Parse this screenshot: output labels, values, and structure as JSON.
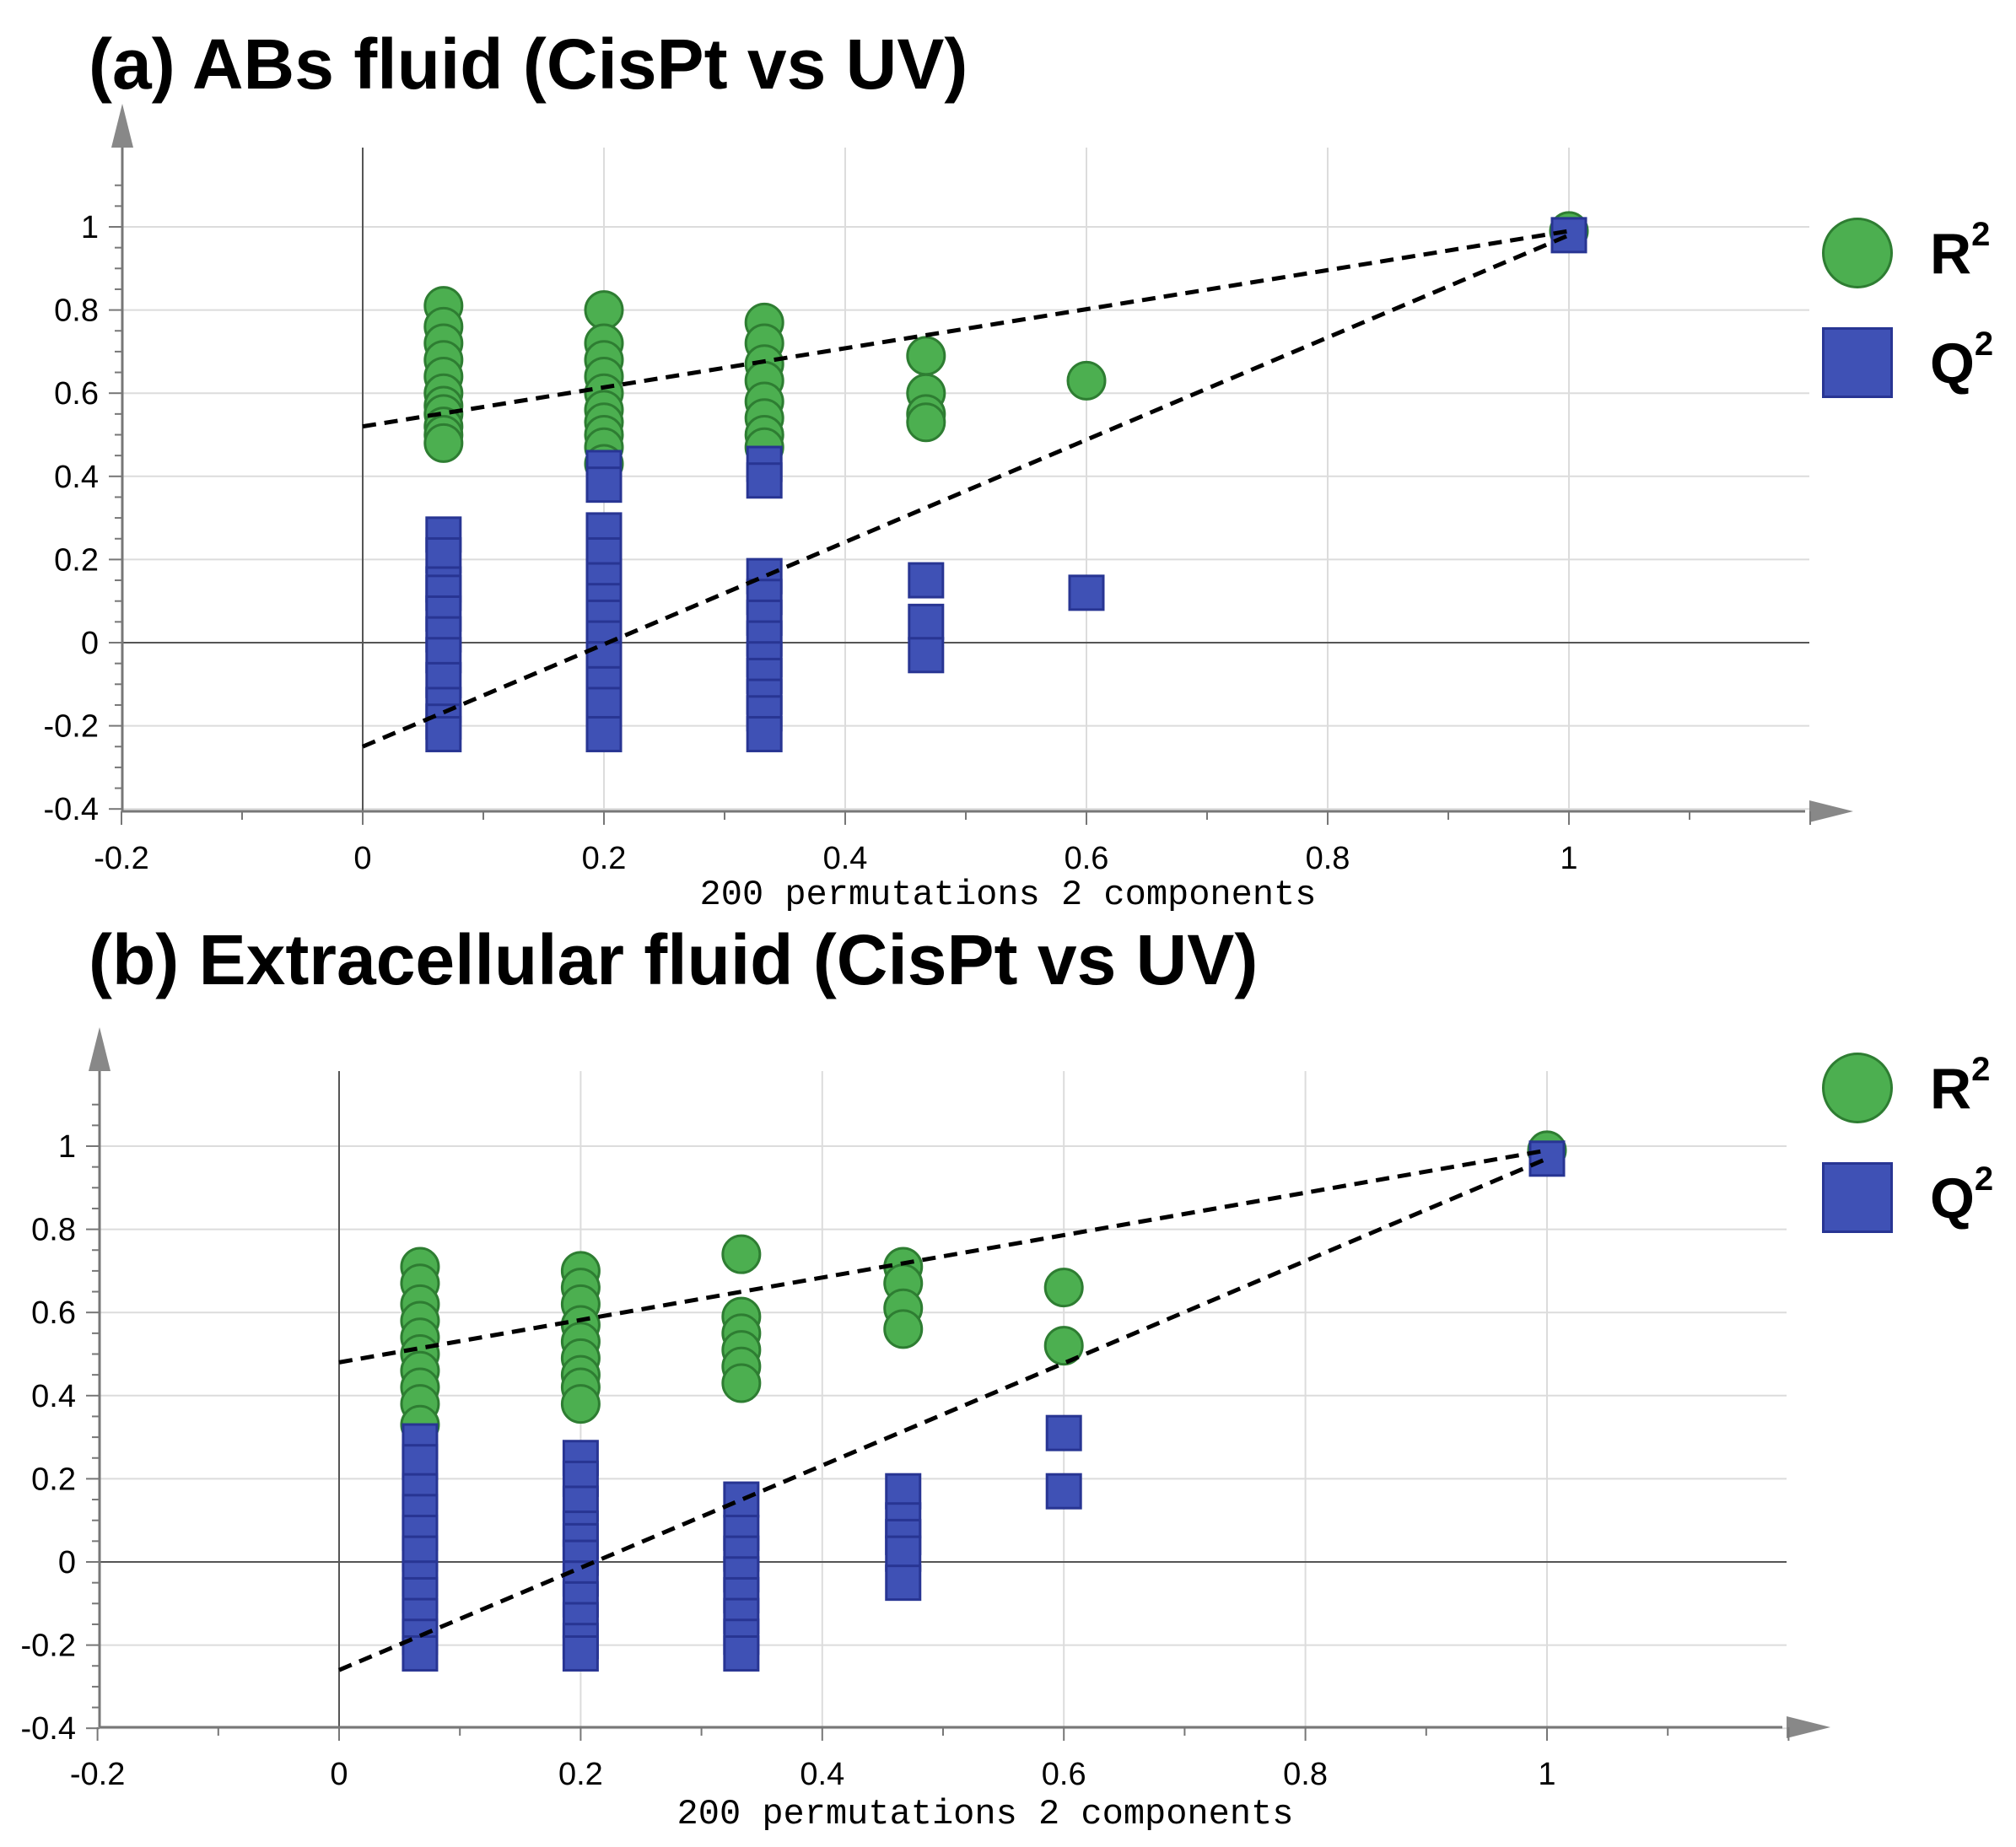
{
  "chart_data": [
    {
      "type": "scatter",
      "title": "(a) ABs fluid (CisPt vs UV)",
      "xlabel": "200 permutations 2 components",
      "ylabel": "",
      "xlim": [
        -0.2,
        1.2
      ],
      "ylim": [
        -0.4,
        1.2
      ],
      "xticks": [
        -0.2,
        0,
        0.2,
        0.4,
        0.6,
        0.8,
        1
      ],
      "yticks": [
        -0.4,
        -0.2,
        0,
        0.2,
        0.4,
        0.6,
        0.8,
        1
      ],
      "xtick_labels": [
        "-0.2",
        "0",
        "0.2",
        "0.4",
        "0.6",
        "0.8",
        "1"
      ],
      "ytick_labels": [
        "-0.4",
        "-0.2",
        "0",
        "0.2",
        "0.4",
        "0.6",
        "0.8",
        "1"
      ],
      "legend": [
        {
          "name": "R",
          "sup": "2",
          "marker": "circle",
          "color": "#4caf50"
        },
        {
          "name": "Q",
          "sup": "2",
          "marker": "square",
          "color": "#3f51b5"
        }
      ],
      "series": [
        {
          "name": "R2",
          "marker": "circle",
          "color": "#4caf50",
          "points": [
            [
              0.067,
              0.81
            ],
            [
              0.067,
              0.76
            ],
            [
              0.067,
              0.72
            ],
            [
              0.067,
              0.68
            ],
            [
              0.067,
              0.64
            ],
            [
              0.067,
              0.6
            ],
            [
              0.067,
              0.57
            ],
            [
              0.067,
              0.55
            ],
            [
              0.067,
              0.52
            ],
            [
              0.067,
              0.5
            ],
            [
              0.067,
              0.48
            ],
            [
              0.2,
              0.8
            ],
            [
              0.2,
              0.72
            ],
            [
              0.2,
              0.68
            ],
            [
              0.2,
              0.64
            ],
            [
              0.2,
              0.6
            ],
            [
              0.2,
              0.56
            ],
            [
              0.2,
              0.53
            ],
            [
              0.2,
              0.5
            ],
            [
              0.2,
              0.47
            ],
            [
              0.2,
              0.43
            ],
            [
              0.333,
              0.77
            ],
            [
              0.333,
              0.72
            ],
            [
              0.333,
              0.67
            ],
            [
              0.333,
              0.63
            ],
            [
              0.333,
              0.58
            ],
            [
              0.333,
              0.54
            ],
            [
              0.333,
              0.5
            ],
            [
              0.333,
              0.47
            ],
            [
              0.467,
              0.69
            ],
            [
              0.467,
              0.6
            ],
            [
              0.467,
              0.55
            ],
            [
              0.467,
              0.53
            ],
            [
              0.6,
              0.63
            ],
            [
              1.0,
              0.99
            ]
          ]
        },
        {
          "name": "Q2",
          "marker": "square",
          "color": "#3f51b5",
          "points": [
            [
              0.067,
              0.26
            ],
            [
              0.067,
              0.21
            ],
            [
              0.067,
              0.14
            ],
            [
              0.067,
              0.12
            ],
            [
              0.067,
              0.07
            ],
            [
              0.067,
              0.02
            ],
            [
              0.067,
              -0.03
            ],
            [
              0.067,
              -0.09
            ],
            [
              0.067,
              -0.15
            ],
            [
              0.067,
              -0.19
            ],
            [
              0.067,
              -0.22
            ],
            [
              0.2,
              0.42
            ],
            [
              0.2,
              0.38
            ],
            [
              0.2,
              0.27
            ],
            [
              0.2,
              0.21
            ],
            [
              0.2,
              0.15
            ],
            [
              0.2,
              0.1
            ],
            [
              0.2,
              0.06
            ],
            [
              0.2,
              0.01
            ],
            [
              0.2,
              -0.04
            ],
            [
              0.2,
              -0.1
            ],
            [
              0.2,
              -0.15
            ],
            [
              0.2,
              -0.22
            ],
            [
              0.333,
              0.43
            ],
            [
              0.333,
              0.39
            ],
            [
              0.333,
              0.16
            ],
            [
              0.333,
              0.11
            ],
            [
              0.333,
              0.06
            ],
            [
              0.333,
              0.01
            ],
            [
              0.333,
              -0.04
            ],
            [
              0.333,
              -0.08
            ],
            [
              0.333,
              -0.13
            ],
            [
              0.333,
              -0.17
            ],
            [
              0.333,
              -0.22
            ],
            [
              0.467,
              0.15
            ],
            [
              0.467,
              0.05
            ],
            [
              0.467,
              -0.03
            ],
            [
              0.6,
              0.12
            ],
            [
              1.0,
              0.98
            ]
          ]
        }
      ],
      "regression_lines": [
        {
          "name": "R2 intercept",
          "x": [
            0,
            1.0
          ],
          "y": [
            0.52,
            0.99
          ]
        },
        {
          "name": "Q2 intercept",
          "x": [
            0,
            1.0
          ],
          "y": [
            -0.25,
            0.98
          ]
        }
      ]
    },
    {
      "type": "scatter",
      "title": "(b) Extracellular fluid (CisPt vs UV)",
      "xlabel": "200 permutations 2 components",
      "ylabel": "",
      "xlim": [
        -0.2,
        1.2
      ],
      "ylim": [
        -0.4,
        1.2
      ],
      "xticks": [
        -0.2,
        0,
        0.2,
        0.4,
        0.6,
        0.8,
        1
      ],
      "yticks": [
        -0.4,
        -0.2,
        0,
        0.2,
        0.4,
        0.6,
        0.8,
        1
      ],
      "xtick_labels": [
        "-0.2",
        "0",
        "0.2",
        "0.4",
        "0.6",
        "0.8",
        "1"
      ],
      "ytick_labels": [
        "-0.4",
        "-0.2",
        "0",
        "0.2",
        "0.4",
        "0.6",
        "0.8",
        "1"
      ],
      "legend": [
        {
          "name": "R",
          "sup": "2",
          "marker": "circle",
          "color": "#4caf50"
        },
        {
          "name": "Q",
          "sup": "2",
          "marker": "square",
          "color": "#3f51b5"
        }
      ],
      "series": [
        {
          "name": "R2",
          "marker": "circle",
          "color": "#4caf50",
          "points": [
            [
              0.067,
              0.71
            ],
            [
              0.067,
              0.67
            ],
            [
              0.067,
              0.62
            ],
            [
              0.067,
              0.58
            ],
            [
              0.067,
              0.54
            ],
            [
              0.067,
              0.5
            ],
            [
              0.067,
              0.46
            ],
            [
              0.067,
              0.42
            ],
            [
              0.067,
              0.38
            ],
            [
              0.067,
              0.33
            ],
            [
              0.2,
              0.7
            ],
            [
              0.2,
              0.66
            ],
            [
              0.2,
              0.62
            ],
            [
              0.2,
              0.57
            ],
            [
              0.2,
              0.53
            ],
            [
              0.2,
              0.49
            ],
            [
              0.2,
              0.45
            ],
            [
              0.2,
              0.42
            ],
            [
              0.2,
              0.38
            ],
            [
              0.333,
              0.74
            ],
            [
              0.333,
              0.59
            ],
            [
              0.333,
              0.55
            ],
            [
              0.333,
              0.51
            ],
            [
              0.333,
              0.47
            ],
            [
              0.333,
              0.43
            ],
            [
              0.467,
              0.71
            ],
            [
              0.467,
              0.67
            ],
            [
              0.467,
              0.61
            ],
            [
              0.467,
              0.56
            ],
            [
              0.6,
              0.66
            ],
            [
              0.6,
              0.52
            ],
            [
              1.0,
              0.99
            ]
          ]
        },
        {
          "name": "Q2",
          "marker": "square",
          "color": "#3f51b5",
          "points": [
            [
              0.067,
              0.29
            ],
            [
              0.067,
              0.24
            ],
            [
              0.067,
              0.17
            ],
            [
              0.067,
              0.12
            ],
            [
              0.067,
              0.07
            ],
            [
              0.067,
              0.02
            ],
            [
              0.067,
              -0.04
            ],
            [
              0.067,
              -0.08
            ],
            [
              0.067,
              -0.13
            ],
            [
              0.067,
              -0.18
            ],
            [
              0.067,
              -0.22
            ],
            [
              0.2,
              0.25
            ],
            [
              0.2,
              0.2
            ],
            [
              0.2,
              0.14
            ],
            [
              0.2,
              0.08
            ],
            [
              0.2,
              0.05
            ],
            [
              0.2,
              0.01
            ],
            [
              0.2,
              -0.04
            ],
            [
              0.2,
              -0.09
            ],
            [
              0.2,
              -0.14
            ],
            [
              0.2,
              -0.19
            ],
            [
              0.2,
              -0.22
            ],
            [
              0.333,
              0.15
            ],
            [
              0.333,
              0.07
            ],
            [
              0.333,
              0.02
            ],
            [
              0.333,
              -0.03
            ],
            [
              0.333,
              -0.08
            ],
            [
              0.333,
              -0.13
            ],
            [
              0.333,
              -0.18
            ],
            [
              0.333,
              -0.22
            ],
            [
              0.467,
              0.17
            ],
            [
              0.467,
              0.1
            ],
            [
              0.467,
              0.06
            ],
            [
              0.467,
              0.02
            ],
            [
              0.467,
              -0.05
            ],
            [
              0.6,
              0.31
            ],
            [
              0.6,
              0.17
            ],
            [
              1.0,
              0.97
            ]
          ]
        }
      ],
      "regression_lines": [
        {
          "name": "R2 intercept",
          "x": [
            0,
            1.0
          ],
          "y": [
            0.48,
            0.99
          ]
        },
        {
          "name": "Q2 intercept",
          "x": [
            0,
            1.0
          ],
          "y": [
            -0.26,
            0.97
          ]
        }
      ]
    }
  ]
}
